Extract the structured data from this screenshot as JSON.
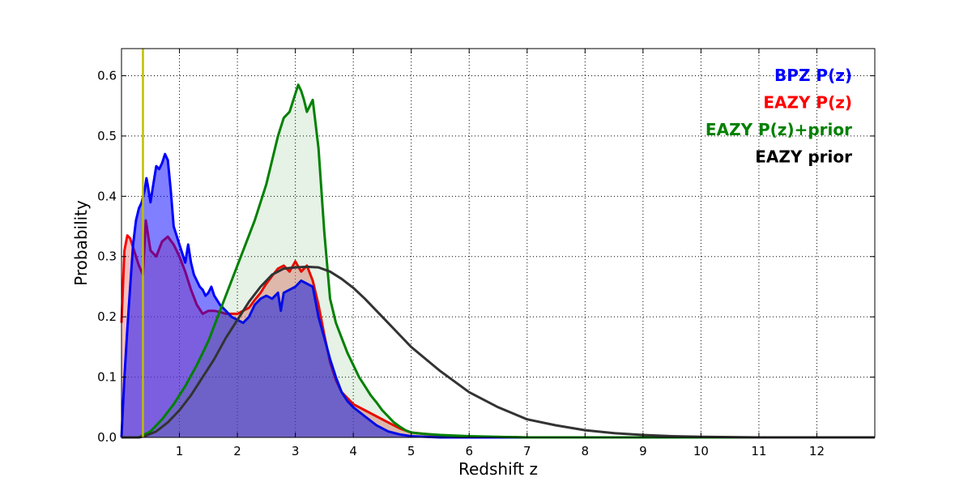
{
  "chart_data": {
    "type": "area",
    "title": "",
    "xlabel": "Redshift z",
    "ylabel": "Probability",
    "xlim": [
      0,
      13
    ],
    "ylim": [
      0,
      0.645
    ],
    "x_ticks": [
      1,
      2,
      3,
      4,
      5,
      6,
      7,
      8,
      9,
      10,
      11,
      12
    ],
    "x_tick_labels": [
      "1",
      "2",
      "3",
      "4",
      "5",
      "6",
      "7",
      "8",
      "9",
      "10",
      "11",
      "12"
    ],
    "y_ticks": [
      0.0,
      0.1,
      0.2,
      0.3,
      0.4,
      0.5,
      0.6
    ],
    "y_tick_labels": [
      "0.0",
      "0.1",
      "0.2",
      "0.3",
      "0.4",
      "0.5",
      "0.6"
    ],
    "grid": true,
    "legend_position": "top-right",
    "marker_line": {
      "x": 0.37,
      "color": "#bfbf00"
    },
    "series": [
      {
        "name": "EAZY P(z)",
        "color": "#ff0000",
        "fill": "#f08080",
        "fill_opacity": 0.5,
        "x": [
          0,
          0.05,
          0.1,
          0.15,
          0.2,
          0.25,
          0.3,
          0.37,
          0.42,
          0.5,
          0.6,
          0.7,
          0.8,
          0.9,
          1.0,
          1.1,
          1.2,
          1.3,
          1.4,
          1.5,
          1.6,
          1.7,
          1.8,
          1.9,
          2.0,
          2.1,
          2.2,
          2.3,
          2.4,
          2.5,
          2.6,
          2.7,
          2.8,
          2.9,
          3.0,
          3.1,
          3.2,
          3.3,
          3.4,
          3.5,
          3.6,
          3.7,
          3.8,
          3.9,
          4.0,
          4.2,
          4.4,
          4.6,
          4.8,
          5.0,
          5.5,
          6.0,
          7.0,
          13.0
        ],
        "y": [
          0.19,
          0.31,
          0.335,
          0.33,
          0.315,
          0.3,
          0.285,
          0.27,
          0.36,
          0.31,
          0.3,
          0.325,
          0.333,
          0.32,
          0.3,
          0.275,
          0.245,
          0.22,
          0.205,
          0.21,
          0.21,
          0.208,
          0.205,
          0.205,
          0.205,
          0.21,
          0.215,
          0.228,
          0.24,
          0.255,
          0.268,
          0.28,
          0.285,
          0.275,
          0.292,
          0.275,
          0.285,
          0.26,
          0.22,
          0.17,
          0.125,
          0.095,
          0.075,
          0.065,
          0.055,
          0.045,
          0.035,
          0.025,
          0.015,
          0.008,
          0.003,
          0.001,
          0.0,
          0.0
        ]
      },
      {
        "name": "BPZ P(z)",
        "color": "#0000ff",
        "fill": "#0000ff",
        "fill_opacity": 0.5,
        "x": [
          0,
          0.02,
          0.05,
          0.1,
          0.15,
          0.2,
          0.25,
          0.3,
          0.35,
          0.4,
          0.43,
          0.45,
          0.5,
          0.55,
          0.6,
          0.65,
          0.7,
          0.75,
          0.8,
          0.85,
          0.9,
          1.0,
          1.05,
          1.1,
          1.15,
          1.2,
          1.25,
          1.3,
          1.35,
          1.4,
          1.45,
          1.5,
          1.55,
          1.6,
          1.7,
          1.8,
          1.9,
          2.0,
          2.1,
          2.2,
          2.3,
          2.4,
          2.5,
          2.6,
          2.7,
          2.75,
          2.8,
          2.9,
          3.0,
          3.1,
          3.2,
          3.3,
          3.4,
          3.5,
          3.6,
          3.7,
          3.8,
          3.9,
          4.0,
          4.2,
          4.4,
          4.6,
          4.8,
          5.0,
          5.5,
          6.0,
          13.0
        ],
        "y": [
          0.0,
          0.04,
          0.1,
          0.18,
          0.25,
          0.32,
          0.36,
          0.38,
          0.39,
          0.41,
          0.43,
          0.42,
          0.39,
          0.42,
          0.45,
          0.445,
          0.455,
          0.47,
          0.46,
          0.41,
          0.35,
          0.32,
          0.305,
          0.29,
          0.32,
          0.29,
          0.27,
          0.26,
          0.25,
          0.245,
          0.235,
          0.24,
          0.25,
          0.235,
          0.22,
          0.21,
          0.2,
          0.195,
          0.19,
          0.2,
          0.22,
          0.23,
          0.235,
          0.23,
          0.24,
          0.21,
          0.24,
          0.245,
          0.25,
          0.26,
          0.255,
          0.25,
          0.2,
          0.165,
          0.13,
          0.1,
          0.075,
          0.06,
          0.05,
          0.035,
          0.02,
          0.01,
          0.005,
          0.002,
          0.0,
          0.0,
          0.0
        ]
      },
      {
        "name": "EAZY P(z)+prior",
        "color": "#008000",
        "fill": "#008000",
        "fill_opacity": 0.1,
        "x": [
          0,
          0.3,
          0.5,
          0.7,
          0.9,
          1.1,
          1.3,
          1.5,
          1.7,
          1.9,
          2.1,
          2.3,
          2.5,
          2.6,
          2.7,
          2.8,
          2.9,
          3.0,
          3.05,
          3.1,
          3.15,
          3.2,
          3.25,
          3.3,
          3.4,
          3.5,
          3.6,
          3.7,
          3.8,
          3.9,
          4.0,
          4.1,
          4.2,
          4.3,
          4.4,
          4.5,
          4.6,
          4.7,
          4.8,
          4.9,
          5.0,
          5.2,
          5.5,
          6.0,
          7.0,
          13.0
        ],
        "y": [
          0.0,
          0.0,
          0.01,
          0.03,
          0.055,
          0.085,
          0.12,
          0.16,
          0.21,
          0.26,
          0.31,
          0.36,
          0.42,
          0.46,
          0.5,
          0.53,
          0.54,
          0.57,
          0.585,
          0.575,
          0.56,
          0.54,
          0.55,
          0.56,
          0.48,
          0.34,
          0.23,
          0.19,
          0.165,
          0.14,
          0.12,
          0.1,
          0.085,
          0.07,
          0.058,
          0.045,
          0.035,
          0.025,
          0.018,
          0.012,
          0.008,
          0.006,
          0.004,
          0.002,
          0.0,
          0.0
        ]
      },
      {
        "name": "EAZY prior",
        "color": "#333333",
        "fill": "#ffffff",
        "fill_opacity": 0.0,
        "x": [
          0,
          0.3,
          0.4,
          0.6,
          0.8,
          1.0,
          1.2,
          1.4,
          1.6,
          1.8,
          2.0,
          2.2,
          2.4,
          2.6,
          2.8,
          3.0,
          3.2,
          3.4,
          3.6,
          3.8,
          4.0,
          4.2,
          4.4,
          4.6,
          4.8,
          5.0,
          5.5,
          6.0,
          6.5,
          7.0,
          7.5,
          8.0,
          8.5,
          9.0,
          9.5,
          10.0,
          11.0,
          12.0,
          13.0
        ],
        "y": [
          0.0,
          0.0,
          0.002,
          0.01,
          0.025,
          0.045,
          0.07,
          0.1,
          0.13,
          0.165,
          0.195,
          0.225,
          0.25,
          0.27,
          0.28,
          0.282,
          0.283,
          0.282,
          0.275,
          0.263,
          0.248,
          0.23,
          0.21,
          0.19,
          0.17,
          0.15,
          0.11,
          0.075,
          0.05,
          0.03,
          0.02,
          0.012,
          0.007,
          0.004,
          0.002,
          0.001,
          0.0,
          0.0,
          0.0
        ]
      }
    ],
    "legend": [
      {
        "label": "BPZ P(z)",
        "color": "#0000ff"
      },
      {
        "label": "EAZY P(z)",
        "color": "#ff0000"
      },
      {
        "label": "EAZY P(z)+prior",
        "color": "#008000"
      },
      {
        "label": "EAZY prior",
        "color": "#000000"
      }
    ]
  }
}
